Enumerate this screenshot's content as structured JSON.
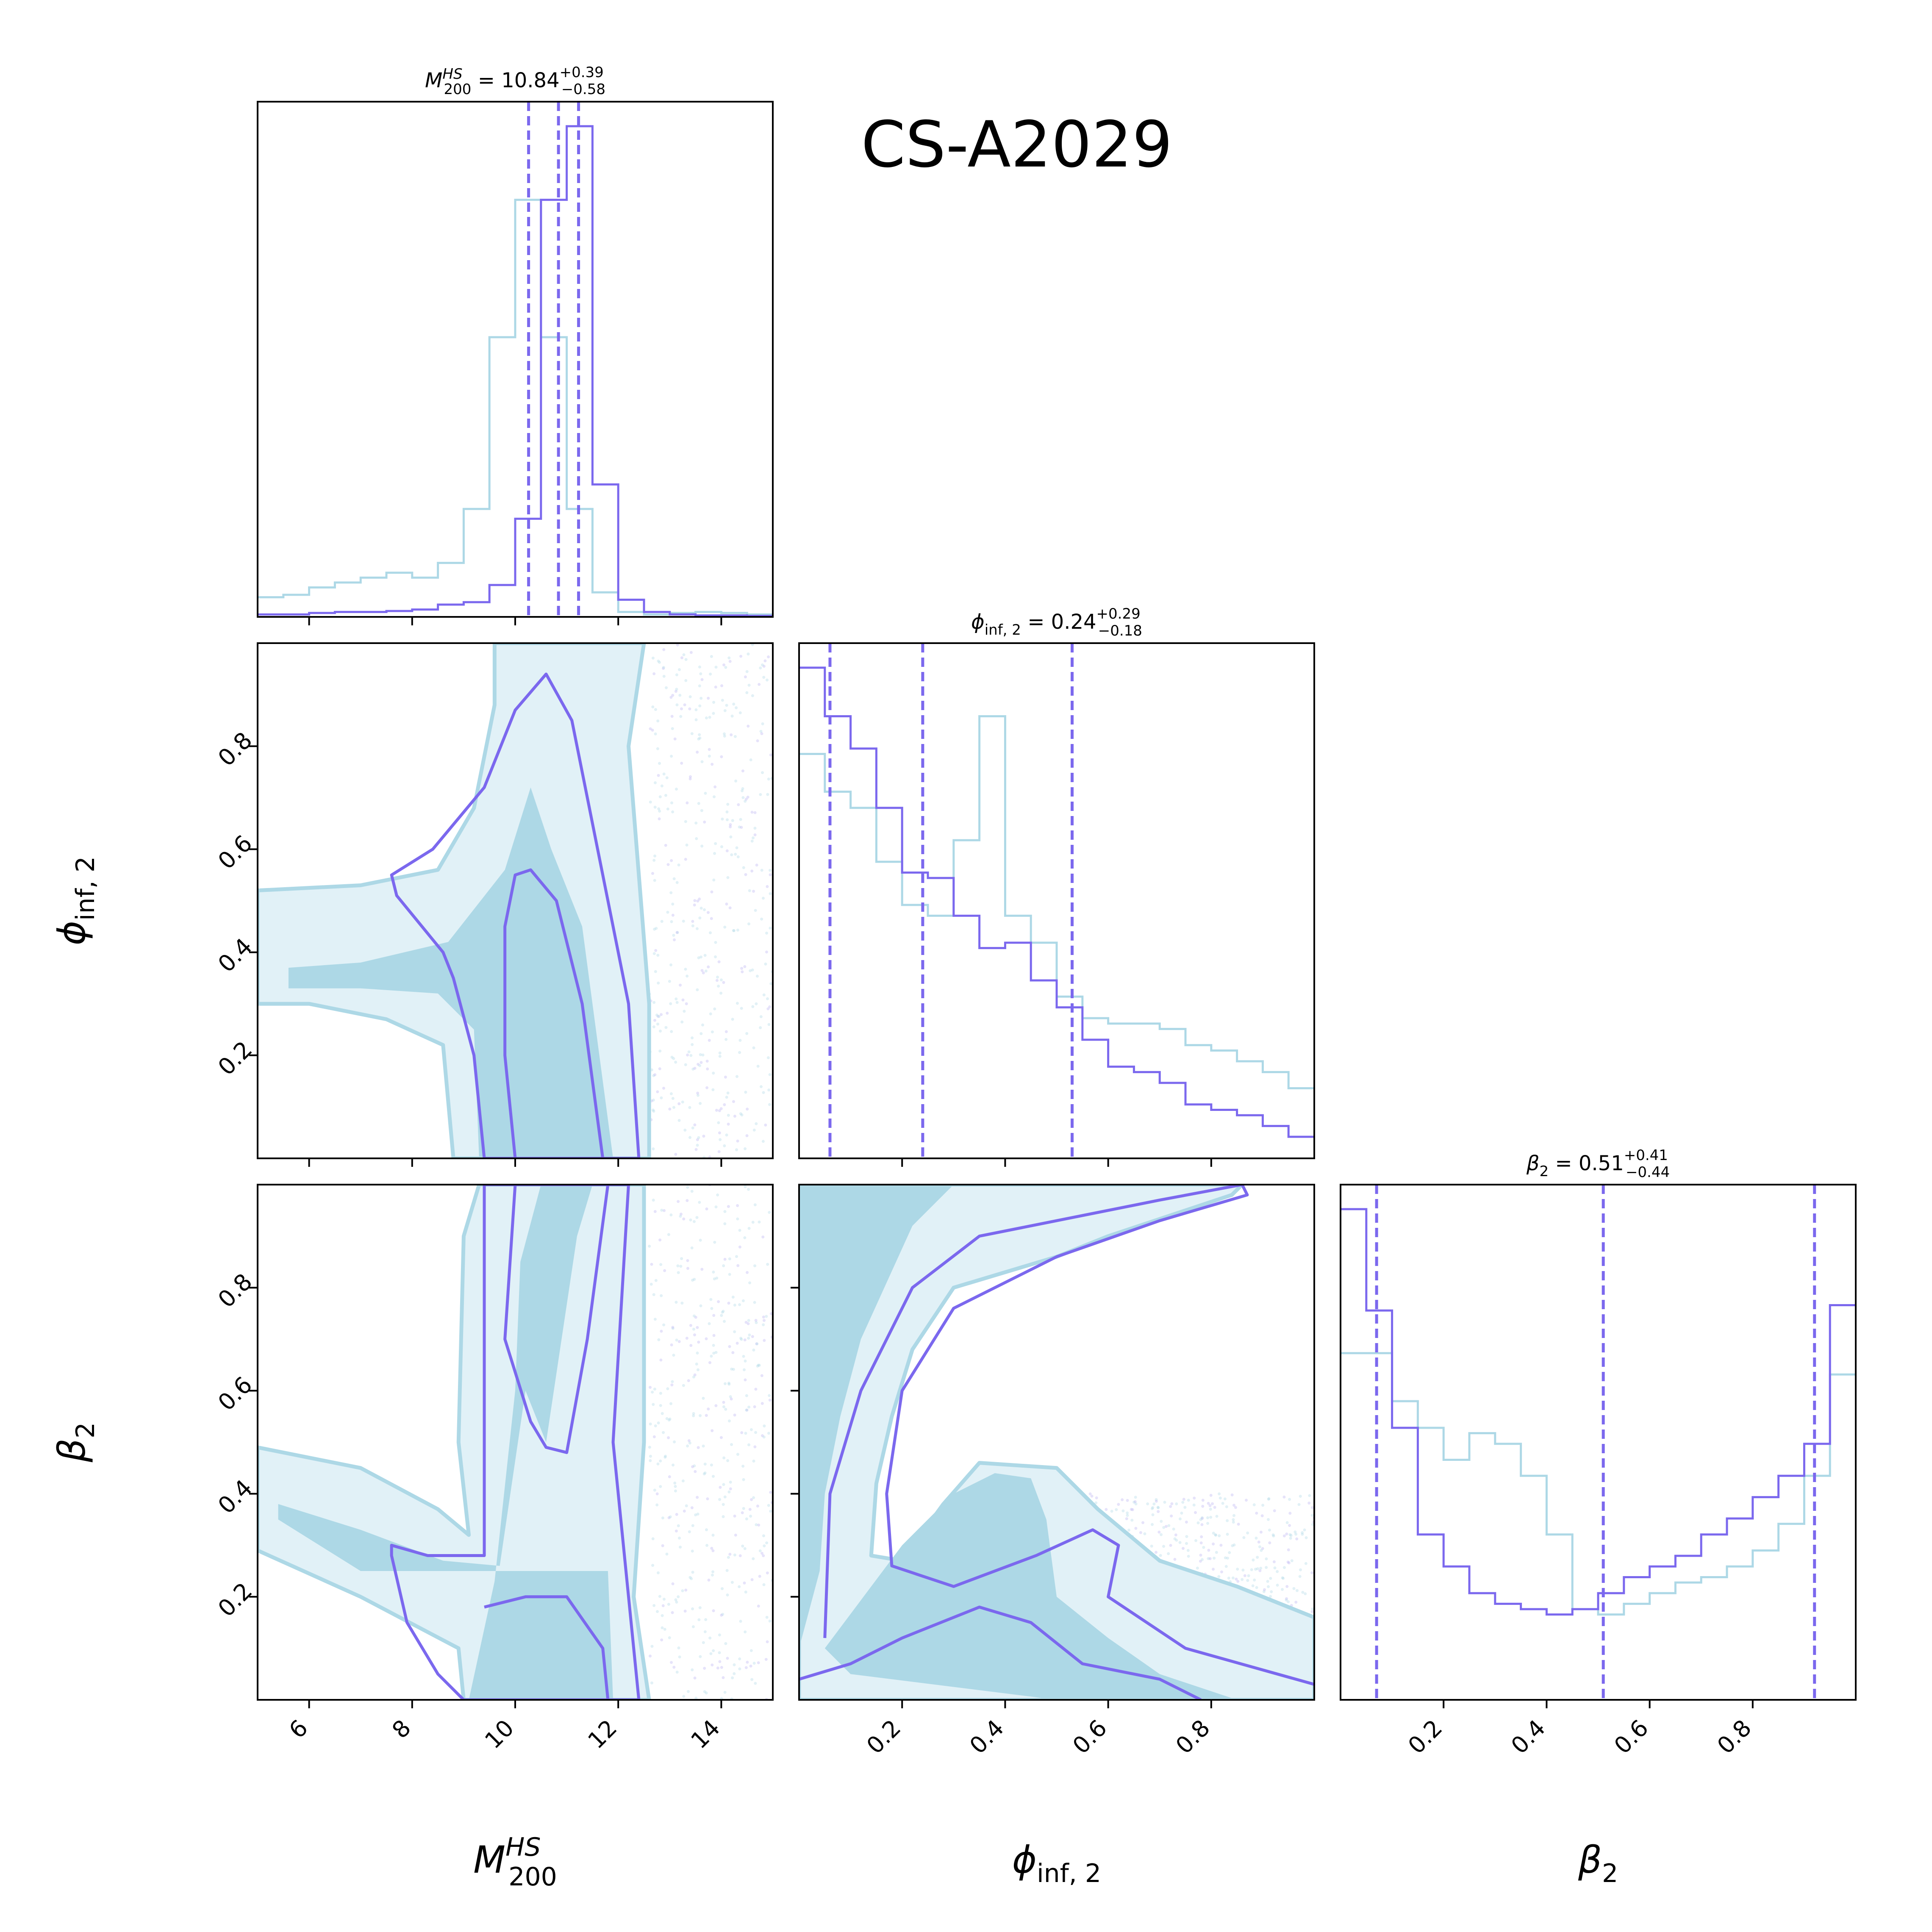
{
  "figure_title": "CS-A2029",
  "colors": {
    "run1": "#7b68ee",
    "run2": "#add8e6",
    "run2_light": "#e1f1f7"
  },
  "parameters": [
    {
      "id": "M200",
      "label": "M",
      "label_sup": "HS",
      "label_sub": "200",
      "range": [
        5,
        15
      ],
      "ticks": [
        6,
        8,
        10,
        12,
        14
      ],
      "tick_labels": [
        "6",
        "8",
        "10",
        "12",
        "14"
      ]
    },
    {
      "id": "phi",
      "label": "ϕ",
      "label_sub": "inf, 2",
      "range": [
        0,
        1
      ],
      "ticks": [
        0.2,
        0.4,
        0.6,
        0.8
      ],
      "tick_labels": [
        "0.2",
        "0.4",
        "0.6",
        "0.8"
      ]
    },
    {
      "id": "beta",
      "label": "β",
      "label_sub": "2",
      "range": [
        0,
        1
      ],
      "ticks": [
        0.2,
        0.4,
        0.6,
        0.8
      ],
      "tick_labels": [
        "0.2",
        "0.4",
        "0.6",
        "0.8"
      ]
    }
  ],
  "titles": [
    {
      "sym": "M",
      "sup": "HS",
      "sub": "200",
      "eq": " = 10.84",
      "plus": "+0.39",
      "minus": "−0.58"
    },
    {
      "sym": "ϕ",
      "sub": "inf, 2",
      "eq": " = 0.24",
      "plus": "+0.29",
      "minus": "−0.18"
    },
    {
      "sym": "β",
      "sub": "2",
      "eq": " = 0.51",
      "plus": "+0.41",
      "minus": "−0.44"
    }
  ],
  "chart_data": {
    "type": "corner",
    "title": "CS-A2029",
    "series": [
      "purple",
      "lightblue"
    ],
    "histograms": [
      {
        "param": "M200",
        "edges": [
          5,
          5.5,
          6,
          6.5,
          7,
          7.5,
          8,
          8.5,
          9,
          9.5,
          10,
          10.5,
          11,
          11.5,
          12,
          12.5,
          13,
          13.5,
          14,
          14.5,
          15
        ],
        "purple": [
          0.005,
          0.005,
          0.008,
          0.01,
          0.01,
          0.012,
          0.015,
          0.025,
          0.03,
          0.065,
          0.2,
          0.85,
          1.0,
          0.27,
          0.035,
          0.01,
          0.005,
          0.003,
          0.003,
          0.002
        ],
        "lightblue": [
          0.04,
          0.045,
          0.06,
          0.07,
          0.08,
          0.09,
          0.08,
          0.11,
          0.22,
          0.57,
          0.85,
          0.57,
          0.22,
          0.05,
          0.01,
          0.005,
          0.008,
          0.01,
          0.008,
          0.005
        ],
        "quantiles": [
          10.26,
          10.84,
          11.23
        ]
      },
      {
        "param": "phi",
        "edges": [
          0,
          0.05,
          0.1,
          0.15,
          0.2,
          0.25,
          0.3,
          0.35,
          0.4,
          0.45,
          0.5,
          0.55,
          0.6,
          0.65,
          0.7,
          0.75,
          0.8,
          0.85,
          0.9,
          0.95,
          1.0
        ],
        "purple": [
          0.91,
          0.82,
          0.76,
          0.65,
          0.53,
          0.52,
          0.45,
          0.39,
          0.4,
          0.33,
          0.28,
          0.22,
          0.17,
          0.16,
          0.14,
          0.1,
          0.09,
          0.08,
          0.06,
          0.04
        ],
        "lightblue": [
          0.75,
          0.68,
          0.65,
          0.55,
          0.47,
          0.45,
          0.59,
          0.82,
          0.45,
          0.4,
          0.3,
          0.26,
          0.25,
          0.25,
          0.24,
          0.21,
          0.2,
          0.18,
          0.16,
          0.13
        ],
        "quantiles": [
          0.06,
          0.24,
          0.53
        ]
      },
      {
        "param": "beta",
        "edges": [
          0,
          0.05,
          0.1,
          0.15,
          0.2,
          0.25,
          0.3,
          0.35,
          0.4,
          0.45,
          0.5,
          0.55,
          0.6,
          0.65,
          0.7,
          0.75,
          0.8,
          0.85,
          0.9,
          0.95,
          1.0
        ],
        "purple": [
          0.92,
          0.73,
          0.51,
          0.31,
          0.25,
          0.2,
          0.18,
          0.17,
          0.16,
          0.17,
          0.2,
          0.23,
          0.25,
          0.27,
          0.31,
          0.34,
          0.38,
          0.42,
          0.48,
          0.74
        ],
        "lightblue": [
          0.65,
          0.65,
          0.56,
          0.51,
          0.45,
          0.5,
          0.48,
          0.42,
          0.31,
          0.17,
          0.16,
          0.18,
          0.2,
          0.22,
          0.23,
          0.25,
          0.28,
          0.33,
          0.42,
          0.61
        ],
        "quantiles": [
          0.07,
          0.51,
          0.92
        ]
      }
    ],
    "contours": [
      {
        "x": "M200",
        "y": "phi",
        "blue_outer": [
          [
            5,
            0.52
          ],
          [
            7,
            0.53
          ],
          [
            8.5,
            0.56
          ],
          [
            9.2,
            0.68
          ],
          [
            9.6,
            0.88
          ],
          [
            9.6,
            1.0
          ],
          [
            12.5,
            1.0
          ],
          [
            12.2,
            0.8
          ],
          [
            12.6,
            0.3
          ],
          [
            12.6,
            0.0
          ],
          [
            8.8,
            0.0
          ],
          [
            8.6,
            0.22
          ],
          [
            7.5,
            0.27
          ],
          [
            6,
            0.3
          ],
          [
            5,
            0.3
          ]
        ],
        "blue_inner": [
          [
            5.6,
            0.37
          ],
          [
            7,
            0.38
          ],
          [
            8.7,
            0.42
          ],
          [
            9.8,
            0.56
          ],
          [
            10.3,
            0.72
          ],
          [
            10.7,
            0.6
          ],
          [
            11.3,
            0.45
          ],
          [
            11.9,
            0.0
          ],
          [
            9.3,
            0.0
          ],
          [
            9.2,
            0.25
          ],
          [
            8.5,
            0.32
          ],
          [
            7,
            0.33
          ],
          [
            5.6,
            0.33
          ]
        ],
        "purple_outer": [
          [
            7.6,
            0.55
          ],
          [
            8.4,
            0.6
          ],
          [
            9.4,
            0.72
          ],
          [
            10,
            0.87
          ],
          [
            10.6,
            0.94
          ],
          [
            11.1,
            0.85
          ],
          [
            11.6,
            0.6
          ],
          [
            12.2,
            0.3
          ],
          [
            12.4,
            0.0
          ],
          [
            9.4,
            0.0
          ],
          [
            9.2,
            0.2
          ],
          [
            8.8,
            0.35
          ],
          [
            8.6,
            0.4
          ],
          [
            7.7,
            0.51
          ]
        ],
        "purple_inner": [
          [
            9.8,
            0.45
          ],
          [
            10,
            0.55
          ],
          [
            10.3,
            0.56
          ],
          [
            10.8,
            0.5
          ],
          [
            11.3,
            0.3
          ],
          [
            11.7,
            0.0
          ],
          [
            10,
            0.0
          ],
          [
            9.8,
            0.2
          ]
        ]
      },
      {
        "x": "M200",
        "y": "beta",
        "blue_outer": [
          [
            5,
            0.49
          ],
          [
            7,
            0.45
          ],
          [
            8.5,
            0.37
          ],
          [
            9.1,
            0.32
          ],
          [
            8.9,
            0.5
          ],
          [
            9,
            0.9
          ],
          [
            9.3,
            1.0
          ],
          [
            12.5,
            1.0
          ],
          [
            12.5,
            0.5
          ],
          [
            12.3,
            0.2
          ],
          [
            12.6,
            0.0
          ],
          [
            9,
            0.0
          ],
          [
            8.9,
            0.1
          ],
          [
            7,
            0.2
          ],
          [
            5,
            0.29
          ]
        ],
        "blue_inner": [
          [
            5.4,
            0.38
          ],
          [
            7,
            0.33
          ],
          [
            8.6,
            0.27
          ],
          [
            9.7,
            0.26
          ],
          [
            10.2,
            0.6
          ],
          [
            10.6,
            0.5
          ],
          [
            11.2,
            0.9
          ],
          [
            11.5,
            1.0
          ],
          [
            10.5,
            1.0
          ],
          [
            10.1,
            0.85
          ],
          [
            10,
            0.6
          ],
          [
            9.6,
            0.23
          ],
          [
            9.1,
            0.0
          ],
          [
            11.9,
            0.0
          ],
          [
            11.8,
            0.25
          ],
          [
            9.6,
            0.25
          ],
          [
            7,
            0.25
          ],
          [
            5.4,
            0.35
          ]
        ],
        "purple_outer": [
          [
            7.6,
            0.3
          ],
          [
            8.3,
            0.28
          ],
          [
            9.4,
            0.28
          ],
          [
            9.4,
            1.0
          ],
          [
            12.2,
            1.0
          ],
          [
            11.9,
            0.5
          ],
          [
            12.4,
            0.0
          ],
          [
            9,
            0.0
          ],
          [
            8.5,
            0.05
          ],
          [
            7.9,
            0.15
          ],
          [
            7.6,
            0.28
          ]
        ],
        "purple_inner": [
          [
            9.8,
            0.7
          ],
          [
            10.3,
            0.54
          ],
          [
            10.6,
            0.49
          ],
          [
            11,
            0.48
          ],
          [
            11.4,
            0.7
          ],
          [
            11.8,
            1.0
          ],
          [
            10,
            1.0
          ]
        ],
        "purple_inner2": [
          [
            9.4,
            0.18
          ],
          [
            10.2,
            0.2
          ],
          [
            11,
            0.2
          ],
          [
            11.7,
            0.1
          ],
          [
            11.8,
            0.0
          ],
          [
            9.4,
            0.0
          ]
        ]
      },
      {
        "x": "phi",
        "y": "beta",
        "blue_outer": [
          [
            0,
            1.0
          ],
          [
            0.86,
            1.0
          ],
          [
            0.84,
            0.98
          ],
          [
            0.6,
            0.9
          ],
          [
            0.5,
            0.86
          ],
          [
            0.3,
            0.8
          ],
          [
            0.22,
            0.68
          ],
          [
            0.18,
            0.55
          ],
          [
            0.15,
            0.42
          ],
          [
            0.14,
            0.28
          ],
          [
            0.2,
            0.27
          ],
          [
            0.28,
            0.38
          ],
          [
            0.35,
            0.46
          ],
          [
            0.5,
            0.45
          ],
          [
            0.58,
            0.37
          ],
          [
            0.7,
            0.27
          ],
          [
            0.85,
            0.22
          ],
          [
            1.0,
            0.16
          ],
          [
            1.0,
            0.0
          ],
          [
            0,
            0.0
          ]
        ],
        "blue_inner": [
          [
            0,
            1.0
          ],
          [
            0.3,
            1.0
          ],
          [
            0.22,
            0.92
          ],
          [
            0.12,
            0.7
          ],
          [
            0.08,
            0.55
          ],
          [
            0.05,
            0.4
          ],
          [
            0.04,
            0.25
          ],
          [
            0,
            0.1
          ]
        ],
        "blue_inner2": [
          [
            0.22,
            0.32
          ],
          [
            0.3,
            0.4
          ],
          [
            0.38,
            0.44
          ],
          [
            0.45,
            0.43
          ],
          [
            0.48,
            0.35
          ],
          [
            0.5,
            0.2
          ],
          [
            0.6,
            0.12
          ],
          [
            0.7,
            0.05
          ],
          [
            0.85,
            0.0
          ],
          [
            0.5,
            0.0
          ],
          [
            0.1,
            0.05
          ],
          [
            0.05,
            0.1
          ],
          [
            0.2,
            0.3
          ]
        ],
        "purple_outer": [
          [
            0.05,
            0.12
          ],
          [
            0.06,
            0.4
          ],
          [
            0.12,
            0.6
          ],
          [
            0.22,
            0.8
          ],
          [
            0.35,
            0.9
          ],
          [
            0.55,
            0.94
          ],
          [
            0.7,
            0.97
          ],
          [
            0.86,
            1.0
          ],
          [
            0.87,
            0.98
          ],
          [
            0.7,
            0.93
          ],
          [
            0.5,
            0.86
          ],
          [
            0.3,
            0.76
          ],
          [
            0.2,
            0.6
          ],
          [
            0.17,
            0.4
          ],
          [
            0.18,
            0.26
          ],
          [
            0.3,
            0.22
          ],
          [
            0.46,
            0.28
          ],
          [
            0.57,
            0.33
          ],
          [
            0.62,
            0.3
          ],
          [
            0.6,
            0.2
          ],
          [
            0.75,
            0.1
          ],
          [
            1.0,
            0.03
          ]
        ],
        "purple_inner": [
          [
            0,
            0.04
          ],
          [
            0.1,
            0.07
          ],
          [
            0.2,
            0.12
          ],
          [
            0.35,
            0.18
          ],
          [
            0.45,
            0.15
          ],
          [
            0.55,
            0.07
          ],
          [
            0.7,
            0.04
          ],
          [
            0.78,
            0.0
          ]
        ]
      }
    ]
  }
}
